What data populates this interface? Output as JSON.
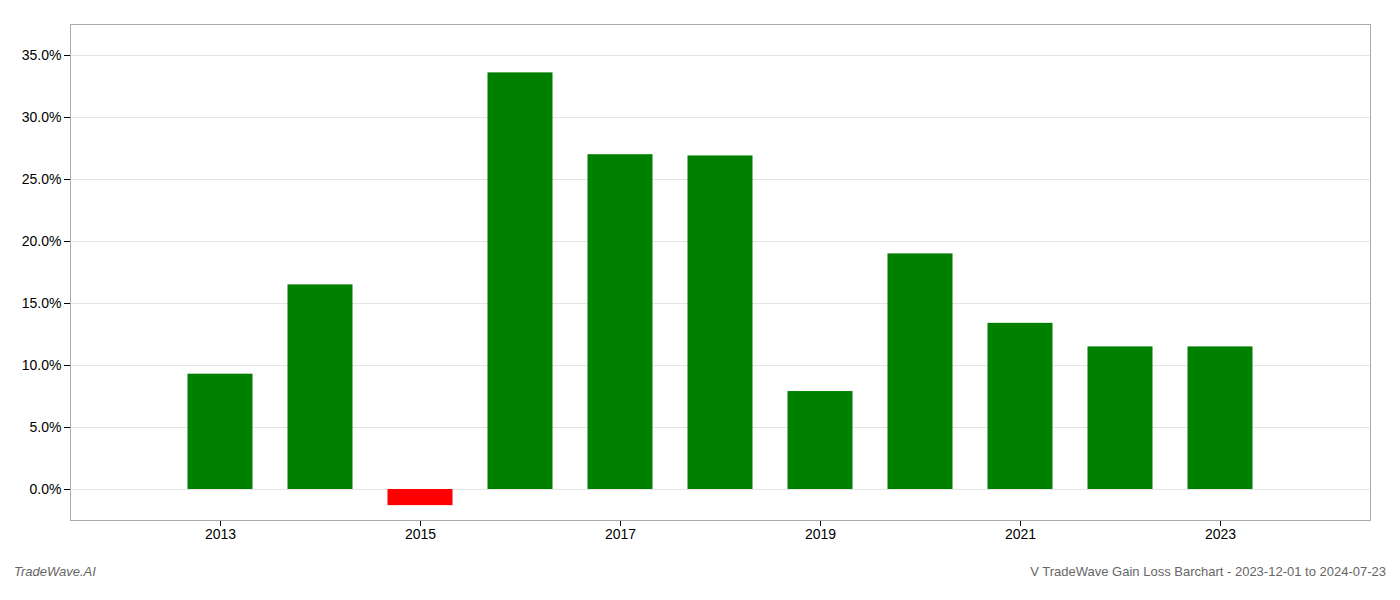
{
  "chart_data": {
    "type": "bar",
    "x": [
      2013,
      2014,
      2015,
      2016,
      2017,
      2018,
      2019,
      2020,
      2021,
      2022,
      2023
    ],
    "values": [
      0.093,
      0.165,
      -0.013,
      0.336,
      0.27,
      0.269,
      0.079,
      0.19,
      0.134,
      0.115,
      0.115
    ],
    "colors": [
      "#008000",
      "#008000",
      "#ff0000",
      "#008000",
      "#008000",
      "#008000",
      "#008000",
      "#008000",
      "#008000",
      "#008000",
      "#008000"
    ],
    "xlim": [
      2011.5,
      2024.5
    ],
    "xticks": [
      2013,
      2015,
      2017,
      2019,
      2021,
      2023
    ],
    "ylim": [
      -0.025,
      0.375
    ],
    "yticks": [
      {
        "value": 0.0,
        "label": "0.0%"
      },
      {
        "value": 0.05,
        "label": "5.0%"
      },
      {
        "value": 0.1,
        "label": "10.0%"
      },
      {
        "value": 0.15,
        "label": "15.0%"
      },
      {
        "value": 0.2,
        "label": "20.0%"
      },
      {
        "value": 0.25,
        "label": "25.0%"
      },
      {
        "value": 0.3,
        "label": "30.0%"
      },
      {
        "value": 0.35,
        "label": "35.0%"
      }
    ],
    "grid": true,
    "annotations": [
      "TradeWave.AI",
      "V TradeWave Gain Loss Barchart - 2023-12-01 to 2024-07-23"
    ]
  }
}
